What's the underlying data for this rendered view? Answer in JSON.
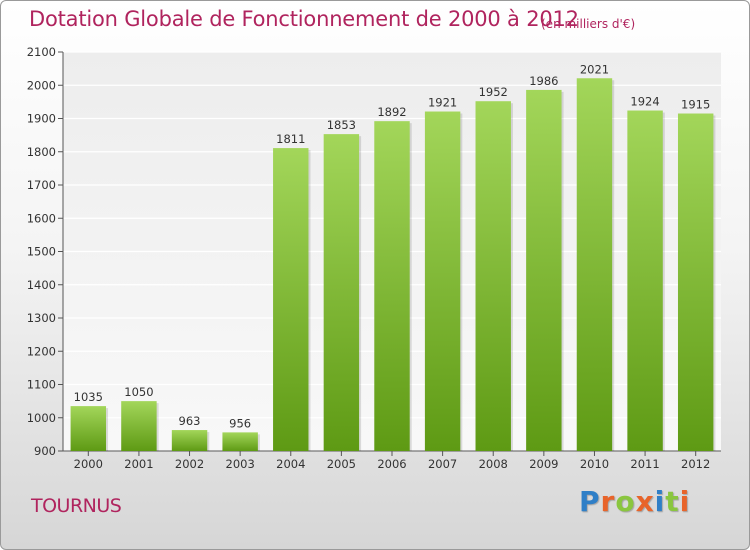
{
  "title": "Dotation Globale de Fonctionnement de 2000 à 2012",
  "unit": "(en milliers d'€)",
  "commune": "TOURNUS",
  "brand": {
    "letters": [
      "P",
      "r",
      "o",
      "x",
      "i",
      "t",
      "i"
    ],
    "colors": [
      "#2f7fc7",
      "#e8642a",
      "#8ac63f",
      "#e8642a",
      "#2f7fc7",
      "#8ac63f",
      "#e8642a"
    ]
  },
  "colors": {
    "bar_top": "#a3d65a",
    "bar_bottom": "#5e9a14",
    "accent": "#b0245e"
  },
  "chart_data": {
    "type": "bar",
    "title": "Dotation Globale de Fonctionnement de 2000 à 2012",
    "ylabel": "",
    "xlabel": "",
    "categories": [
      "2000",
      "2001",
      "2002",
      "2003",
      "2004",
      "2005",
      "2006",
      "2007",
      "2008",
      "2009",
      "2010",
      "2011",
      "2012"
    ],
    "values": [
      1035,
      1050,
      963,
      956,
      1811,
      1853,
      1892,
      1921,
      1952,
      1986,
      2021,
      1924,
      1915
    ],
    "ylim": [
      900,
      2100
    ],
    "yticks": [
      900,
      1000,
      1100,
      1200,
      1300,
      1400,
      1500,
      1600,
      1700,
      1800,
      1900,
      2000,
      2100
    ],
    "grid": true,
    "legend": "none"
  }
}
